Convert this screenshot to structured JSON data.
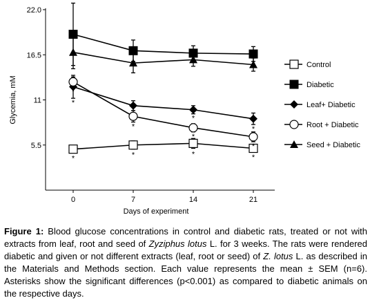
{
  "chart_data": {
    "type": "line",
    "xlabel": "Days of experiment",
    "ylabel": "Glycemia, mM",
    "x": [
      0,
      7,
      14,
      21
    ],
    "x_ticks": [
      "0",
      "7",
      "14",
      "21"
    ],
    "y_ticks": [
      "5.5",
      "11",
      "16.5",
      "22.0"
    ],
    "ylim": [
      0,
      22
    ],
    "legend_position": "right",
    "series": [
      {
        "name": "Control",
        "marker": "open-square",
        "values": [
          5.0,
          5.5,
          5.7,
          5.1
        ],
        "err": [
          0.4,
          0.5,
          0.6,
          0.4
        ],
        "stars": [
          true,
          true,
          true,
          true
        ]
      },
      {
        "name": "Diabetic",
        "marker": "filled-square",
        "values": [
          19.0,
          17.0,
          16.7,
          16.6
        ],
        "err": [
          3.8,
          1.3,
          0.9,
          0.9
        ],
        "stars": [
          false,
          false,
          false,
          false
        ]
      },
      {
        "name": "Leaf+ Diabetic",
        "marker": "filled-diamond",
        "values": [
          12.6,
          10.3,
          9.8,
          8.7
        ],
        "err": [
          1.4,
          0.6,
          0.5,
          0.7
        ],
        "stars": [
          true,
          true,
          true,
          true
        ]
      },
      {
        "name": "Root + Diabetic",
        "marker": "open-circle",
        "values": [
          13.2,
          9.0,
          7.6,
          6.5
        ],
        "err": [
          0.6,
          0.7,
          0.5,
          0.6
        ],
        "stars": [
          true,
          true,
          true,
          true
        ]
      },
      {
        "name": "Seed + Diabetic",
        "marker": "filled-triangle",
        "values": [
          16.8,
          15.5,
          15.9,
          15.3
        ],
        "err": [
          2.0,
          1.2,
          0.8,
          0.8
        ],
        "stars": [
          false,
          false,
          false,
          false
        ]
      }
    ]
  },
  "caption": {
    "label": "Figure 1:",
    "text_1": " Blood glucose concentrations in control and diabetic rats, treated or not with extracts from leaf, root and seed of ",
    "italic_1": "Zyziphus lotus",
    "text_2": " L. for 3 weeks. The rats were rendered diabetic and given or not different extracts (leaf, root or seed) of ",
    "italic_2": "Z. lotus",
    "text_3": " L. as described in the Materials and Methods section. Each value represents the mean ± SEM (n=6). Asterisks show the significant differences (p<0.001) as compared to diabetic animals on the respective days."
  }
}
